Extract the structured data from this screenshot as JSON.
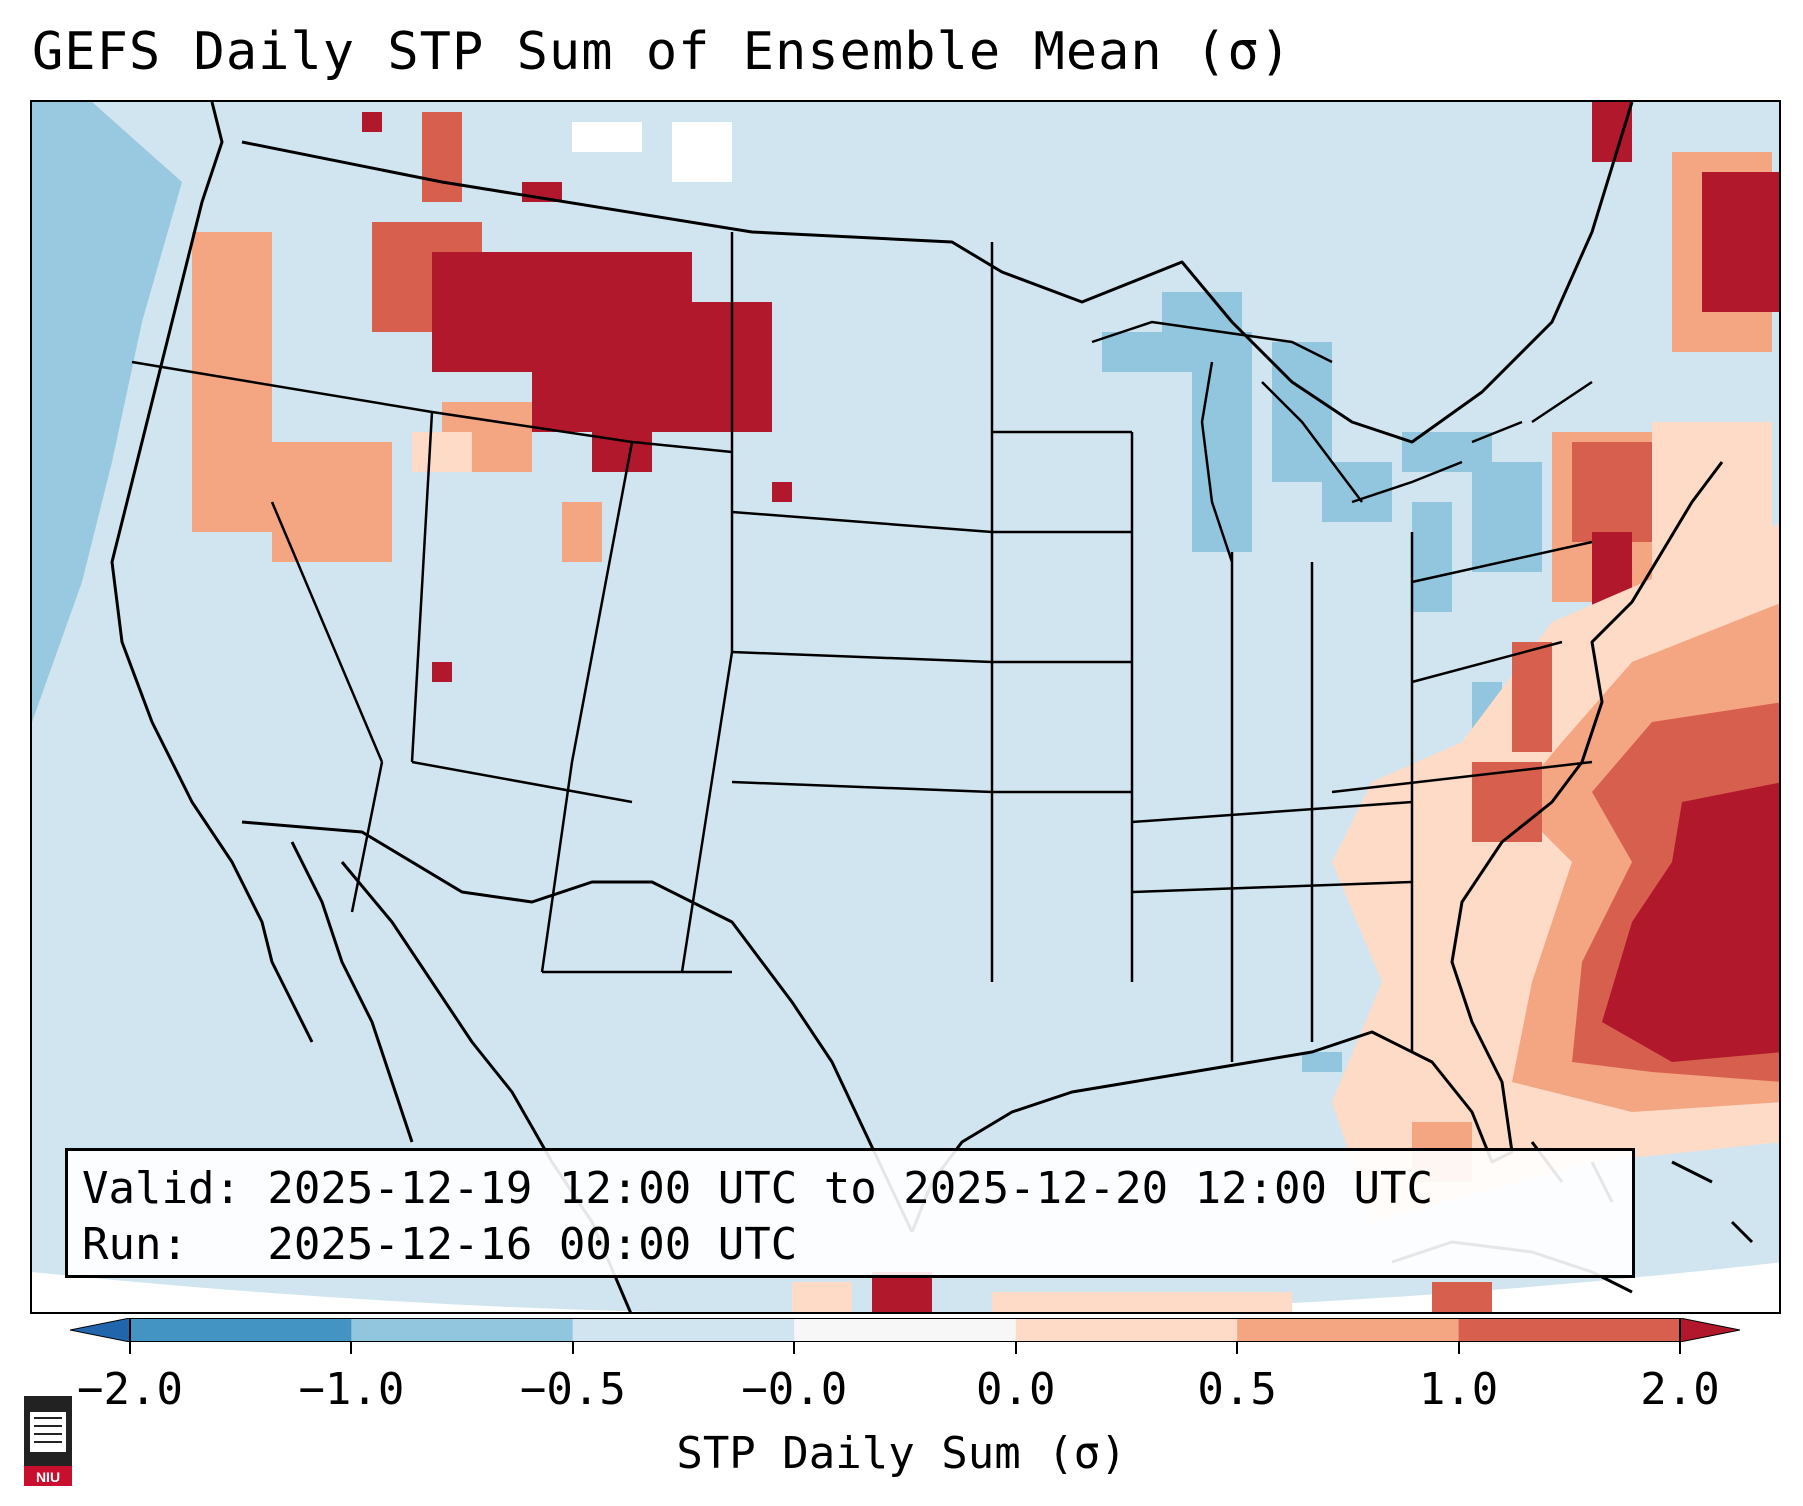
{
  "title": "GEFS Daily STP Sum of Ensemble Mean (σ)",
  "info": {
    "valid_line": "Valid: 2025-12-19 12:00 UTC to 2025-12-20 12:00 UTC",
    "run_line": "Run:   2025-12-16 00:00 UTC"
  },
  "colorbar": {
    "label": "STP Daily Sum (σ)",
    "ticks": [
      "−2.0",
      "−1.0",
      "−0.5",
      "−0.0",
      "0.0",
      "0.5",
      "1.0",
      "2.0"
    ],
    "colors": [
      "#2166ac",
      "#4393c3",
      "#92c5de",
      "#d1e5f0",
      "#f7f7f7",
      "#fddbc7",
      "#f4a582",
      "#d6604d",
      "#b2182b"
    ],
    "extend": "both"
  },
  "logo": {
    "text": "NIU",
    "icon": "niu-castle-logo"
  },
  "map": {
    "projection": "Lambert Conformal, CONUS",
    "field": "STP daily sum anomaly",
    "features": [
      "state-borders",
      "coastlines",
      "country-borders"
    ]
  }
}
